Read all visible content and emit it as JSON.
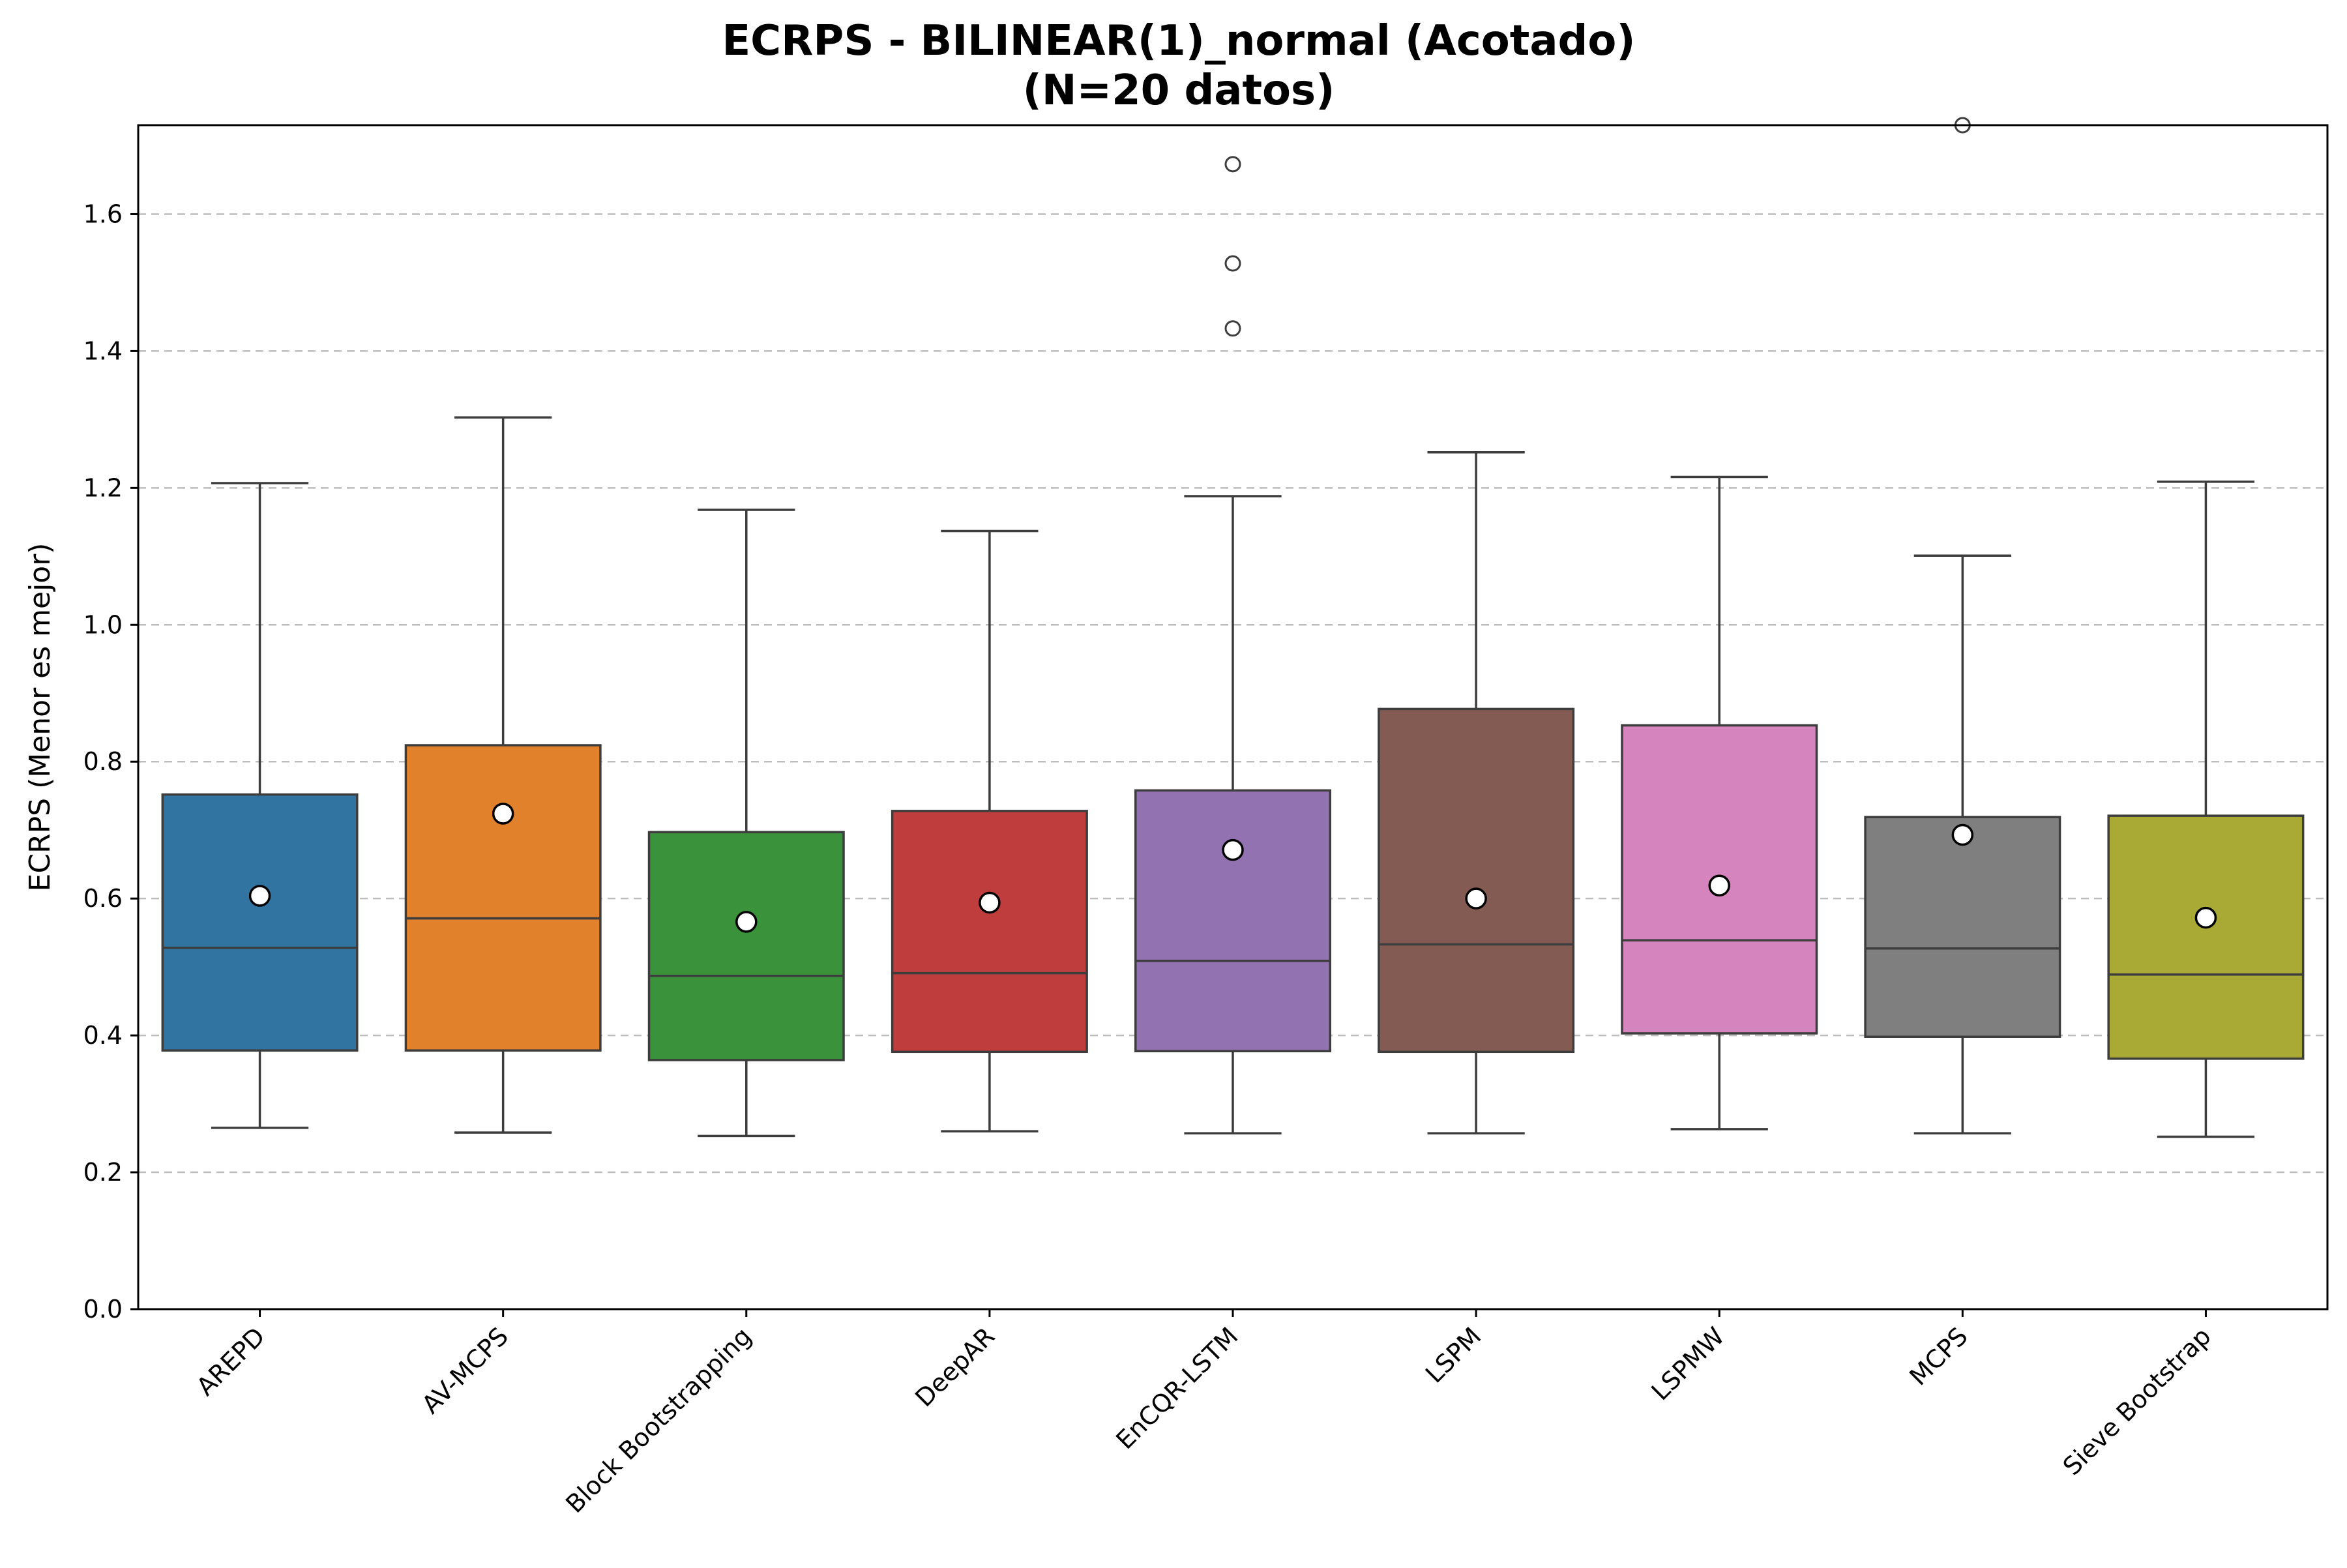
{
  "chart_data": {
    "type": "box",
    "title": [
      "ECRPS - BILINEAR(1)_normal (Acotado)",
      "(N=20 datos)"
    ],
    "xlabel": "",
    "ylabel": "ECRPS (Menor es mejor)",
    "ylim": [
      0.0,
      1.73
    ],
    "yticks": [
      0.0,
      0.2,
      0.4,
      0.6,
      0.8,
      1.0,
      1.2,
      1.4,
      1.6
    ],
    "ytick_labels": [
      "0.0",
      "0.2",
      "0.4",
      "0.6",
      "0.8",
      "1.0",
      "1.2",
      "1.4",
      "1.6"
    ],
    "grid": "y-dashed",
    "categories": [
      "AREPD",
      "AV-MCPS",
      "Block Bootstrapping",
      "DeepAR",
      "EnCQR-LSTM",
      "LSPM",
      "LSPMW",
      "MCPS",
      "Sieve Bootstrap"
    ],
    "series": [
      {
        "category": "AREPD",
        "color": "#3274a1",
        "whislo": 0.265,
        "q1": 0.378,
        "median": 0.528,
        "q3": 0.752,
        "whishi": 1.207,
        "mean": 0.604,
        "fliers": []
      },
      {
        "category": "AV-MCPS",
        "color": "#e1812c",
        "whislo": 0.258,
        "q1": 0.378,
        "median": 0.571,
        "q3": 0.824,
        "whishi": 1.303,
        "mean": 0.724,
        "fliers": []
      },
      {
        "category": "Block Bootstrapping",
        "color": "#3a923a",
        "whislo": 0.253,
        "q1": 0.364,
        "median": 0.487,
        "q3": 0.697,
        "whishi": 1.168,
        "mean": 0.566,
        "fliers": []
      },
      {
        "category": "DeepAR",
        "color": "#c03d3e",
        "whislo": 0.26,
        "q1": 0.376,
        "median": 0.491,
        "q3": 0.728,
        "whishi": 1.137,
        "mean": 0.594,
        "fliers": []
      },
      {
        "category": "EnCQR-LSTM",
        "color": "#9372b2",
        "whislo": 0.257,
        "q1": 0.377,
        "median": 0.509,
        "q3": 0.758,
        "whishi": 1.188,
        "mean": 0.671,
        "fliers": [
          1.433,
          1.528,
          1.673
        ]
      },
      {
        "category": "LSPM",
        "color": "#845b53",
        "whislo": 0.257,
        "q1": 0.376,
        "median": 0.533,
        "q3": 0.877,
        "whishi": 1.252,
        "mean": 0.6,
        "fliers": []
      },
      {
        "category": "LSPMW",
        "color": "#d684bd",
        "whislo": 0.263,
        "q1": 0.403,
        "median": 0.539,
        "q3": 0.853,
        "whishi": 1.216,
        "mean": 0.619,
        "fliers": []
      },
      {
        "category": "MCPS",
        "color": "#7f7f7f",
        "whislo": 0.257,
        "q1": 0.398,
        "median": 0.527,
        "q3": 0.719,
        "whishi": 1.101,
        "mean": 0.693,
        "fliers": [
          1.73
        ]
      },
      {
        "category": "Sieve Bootstrap",
        "color": "#a9aa35",
        "whislo": 0.252,
        "q1": 0.366,
        "median": 0.489,
        "q3": 0.721,
        "whishi": 1.209,
        "mean": 0.572,
        "fliers": []
      }
    ]
  }
}
